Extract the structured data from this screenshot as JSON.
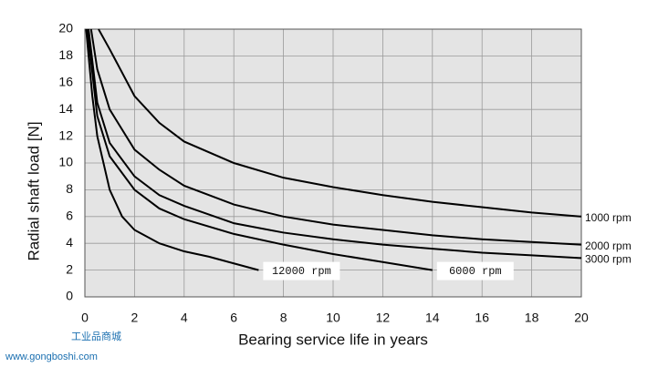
{
  "chart_data": {
    "type": "line",
    "xlabel": "Bearing service life in years",
    "ylabel": "Radial shaft load [N]",
    "xlim": [
      0,
      20
    ],
    "ylim": [
      0,
      20
    ],
    "xticks": [
      0,
      2,
      4,
      6,
      8,
      10,
      12,
      14,
      16,
      18,
      20
    ],
    "yticks": [
      0,
      2,
      4,
      6,
      8,
      10,
      12,
      14,
      16,
      18,
      20
    ],
    "grid": true,
    "series": [
      {
        "name": "1000 rpm",
        "color": "#000000",
        "x": [
          0.55,
          1,
          2,
          3,
          4,
          6,
          8,
          10,
          12,
          14,
          16,
          18,
          20
        ],
        "values": [
          20,
          18.5,
          15,
          13,
          11.6,
          10,
          8.9,
          8.2,
          7.6,
          7.1,
          6.7,
          6.3,
          6
        ]
      },
      {
        "name": "2000 rpm",
        "color": "#000000",
        "x": [
          0.25,
          0.5,
          1,
          2,
          3,
          4,
          6,
          8,
          10,
          12,
          14,
          16,
          18,
          20
        ],
        "values": [
          20,
          17,
          14,
          11,
          9.5,
          8.3,
          6.9,
          6,
          5.4,
          5,
          4.6,
          4.3,
          4.1,
          3.9
        ]
      },
      {
        "name": "3000 rpm",
        "color": "#000000",
        "x": [
          0.15,
          0.5,
          1,
          2,
          3,
          4,
          6,
          8,
          10,
          12,
          14,
          16,
          18,
          20
        ],
        "values": [
          20,
          14.5,
          11.5,
          9,
          7.6,
          6.8,
          5.5,
          4.8,
          4.3,
          3.9,
          3.6,
          3.3,
          3.1,
          2.9
        ]
      },
      {
        "name": "12000 rpm",
        "color": "#000000",
        "x": [
          0.05,
          0.3,
          0.5,
          1,
          1.5,
          2,
          3,
          4,
          5,
          6,
          7
        ],
        "values": [
          20,
          15,
          12,
          8,
          6,
          5,
          4,
          3.4,
          3,
          2.5,
          2
        ]
      },
      {
        "name": "6000 rpm",
        "color": "#000000",
        "x": [
          0.1,
          0.5,
          1,
          2,
          3,
          4,
          6,
          8,
          10,
          12,
          14
        ],
        "values": [
          20,
          13.5,
          10.5,
          8,
          6.6,
          5.8,
          4.7,
          3.9,
          3.2,
          2.6,
          2
        ]
      }
    ]
  },
  "watermark": {
    "tagline": "工业品商城",
    "site": "www.gongboshi.com"
  }
}
